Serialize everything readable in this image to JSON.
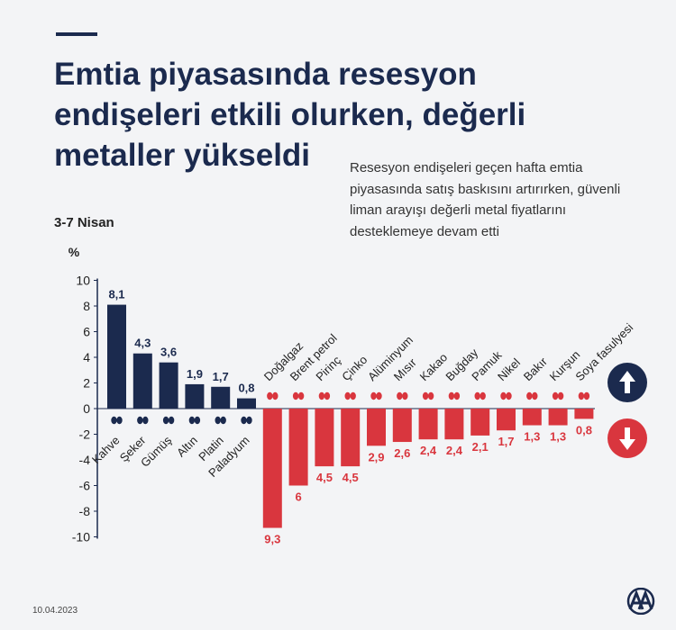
{
  "title": "Emtia piyasasında resesyon endişeleri etkili olurken, değerli metaller yükseldi",
  "subtitle": "Resesyon endişeleri geçen hafta emtia piyasasında satış baskısını artırırken, güvenli liman arayışı değerli metal fiyatlarını desteklemeye devam etti",
  "date_range": "3-7 Nisan",
  "footer_date": "10.04.2023",
  "logo_text": "AA",
  "colors": {
    "up": "#1b2a4e",
    "down": "#d9363e",
    "axis": "#1b2a4e",
    "text": "#222222"
  },
  "chart_data": {
    "type": "bar",
    "ylabel": "%",
    "ylim": [
      -10,
      10
    ],
    "yticks": [
      10,
      8,
      6,
      4,
      2,
      0,
      -2,
      -4,
      -6,
      -8,
      -10
    ],
    "grid": false,
    "categories": [
      "Kahve",
      "Şeker",
      "Gümüş",
      "Altın",
      "Platin",
      "Paladyum",
      "Doğalgaz",
      "Brent petrol",
      "Pirinç",
      "Çinko",
      "Alüminyum",
      "Mısır",
      "Kakao",
      "Buğday",
      "Pamuk",
      "Nikel",
      "Bakır",
      "Kurşun",
      "Soya fasulyesi"
    ],
    "values": [
      8.1,
      4.3,
      3.6,
      1.9,
      1.7,
      0.8,
      -9.3,
      -6,
      -4.5,
      -4.5,
      -2.9,
      -2.6,
      -2.4,
      -2.4,
      -2.1,
      -1.7,
      -1.3,
      -1.3,
      -0.8
    ],
    "value_labels": [
      "8,1",
      "4,3",
      "3,6",
      "1,9",
      "1,7",
      "0,8",
      "9,3",
      "6",
      "4,5",
      "4,5",
      "2,9",
      "2,6",
      "2,4",
      "2,4",
      "2,1",
      "1,7",
      "1,3",
      "1,3",
      "0,8"
    ],
    "icons": [
      "coffee-beans-icon",
      "sugar-sack-icon",
      "silver-bars-icon",
      "gold-bars-icon",
      "platinum-bars-icon",
      "palladium-bars-icon",
      "gas-flame-icon",
      "oil-barrel-icon",
      "rice-sack-icon",
      "zinc-bars-icon",
      "aluminium-bars-icon",
      "corn-icon",
      "cocoa-icon",
      "wheat-icon",
      "cotton-icon",
      "nickel-bars-icon",
      "copper-bars-icon",
      "lead-bars-icon",
      "soybean-icon"
    ],
    "legend": {
      "up_icon": "arrow-up-icon",
      "down_icon": "arrow-down-icon"
    }
  }
}
